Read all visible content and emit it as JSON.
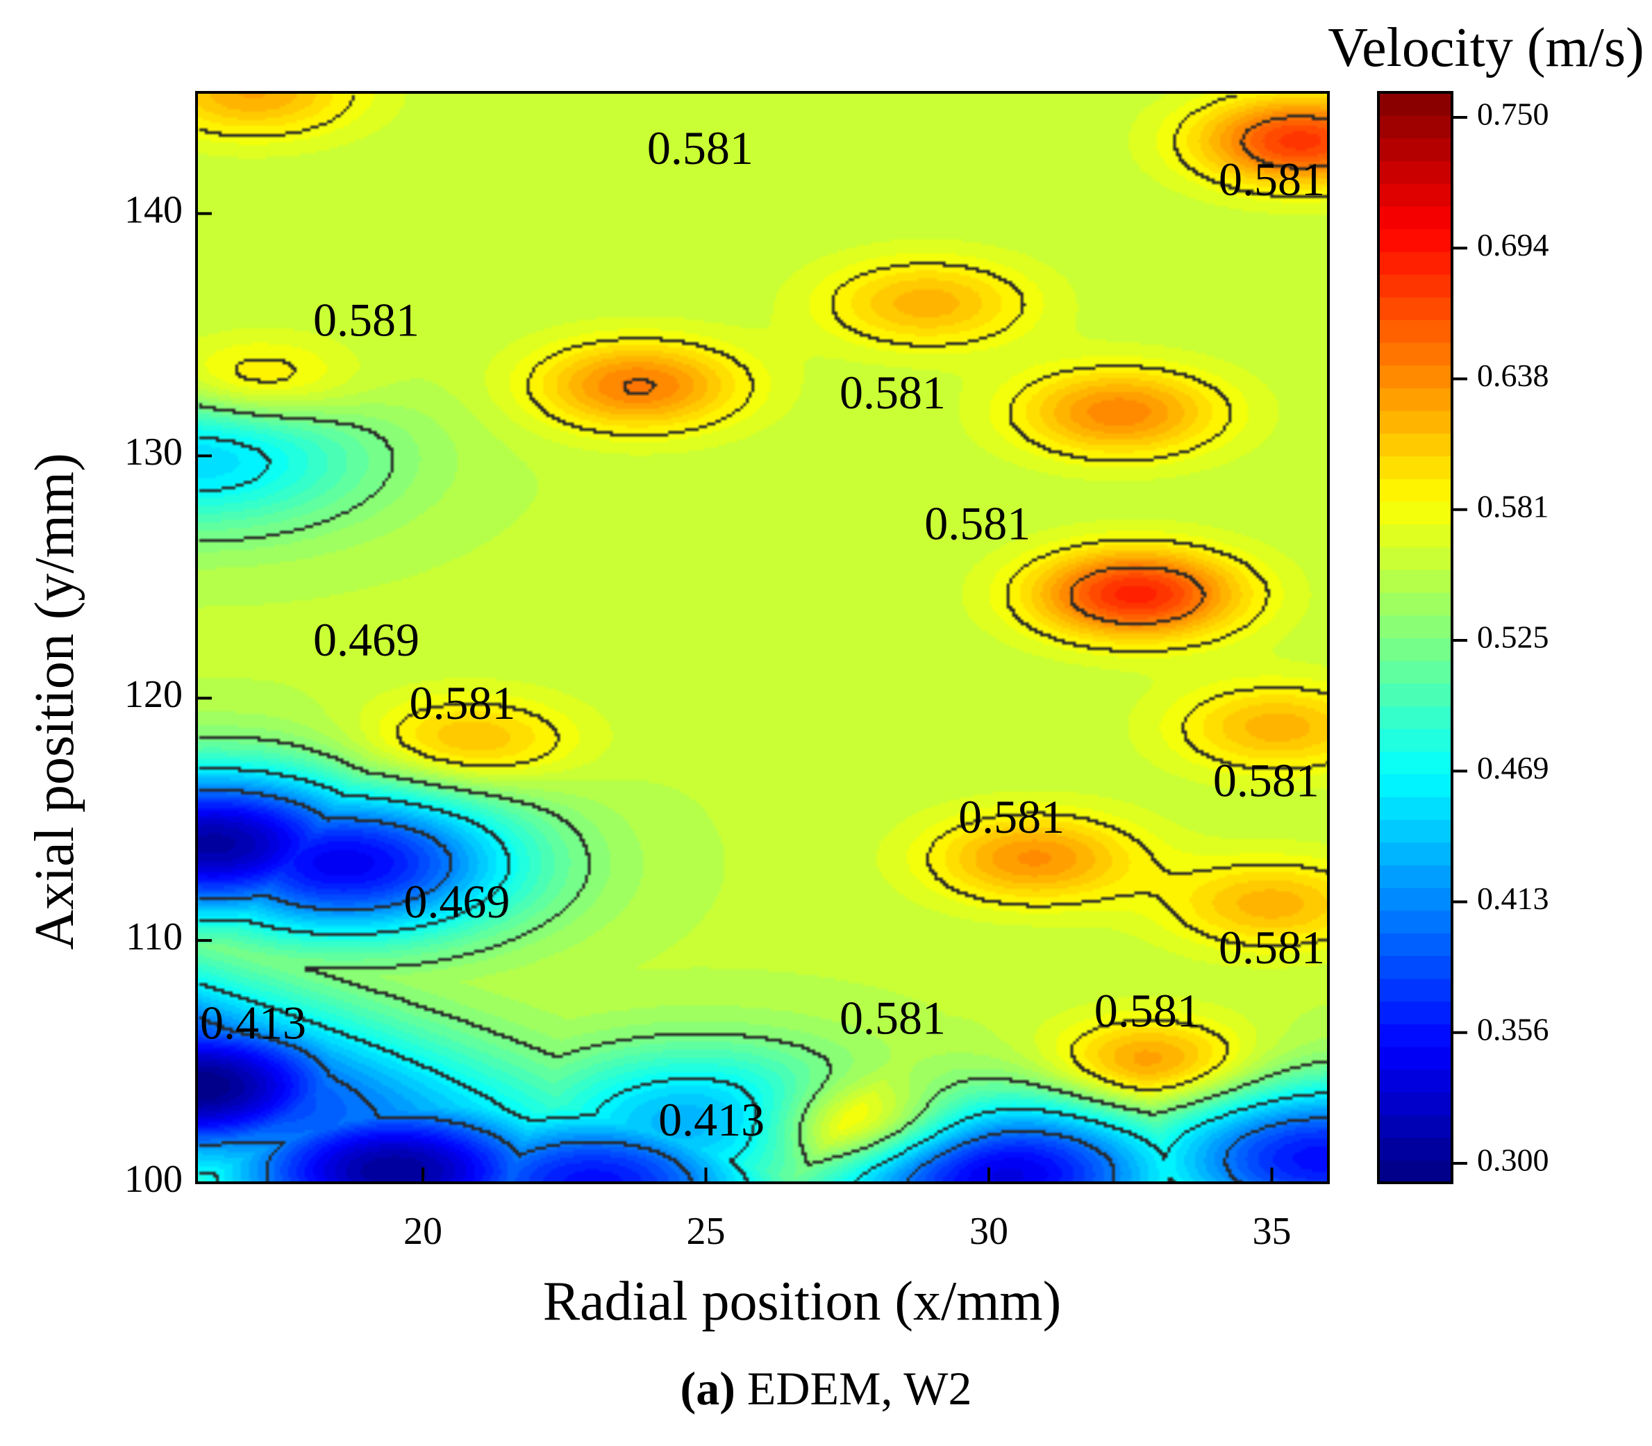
{
  "chart_data": {
    "type": "heatmap",
    "subtype": "filled-contour",
    "xlabel": "Radial position (x/mm)",
    "ylabel": "Axial position (y/mm)",
    "xlim": [
      16,
      36
    ],
    "ylim": [
      100,
      145
    ],
    "x_ticks": [
      20,
      25,
      30,
      35
    ],
    "y_ticks": [
      100,
      110,
      120,
      130,
      140
    ],
    "grid": false,
    "colorbar": {
      "title": "Velocity (m/s)",
      "ticks": [
        "0.300",
        "0.356",
        "0.413",
        "0.469",
        "0.525",
        "0.581",
        "0.638",
        "0.694",
        "0.750"
      ],
      "min": 0.3,
      "max": 0.75,
      "colormap": "jet",
      "placement": "right"
    },
    "contour_labels": [
      {
        "text": "0.581",
        "x": 24.9,
        "y": 142.5
      },
      {
        "text": "0.581",
        "x": 35.0,
        "y": 141.2
      },
      {
        "text": "0.581",
        "x": 19.0,
        "y": 135.4
      },
      {
        "text": "0.581",
        "x": 28.3,
        "y": 132.4
      },
      {
        "text": "0.581",
        "x": 29.8,
        "y": 127.0
      },
      {
        "text": "0.469",
        "x": 19.0,
        "y": 122.2
      },
      {
        "text": "0.581",
        "x": 20.7,
        "y": 119.6
      },
      {
        "text": "0.581",
        "x": 30.4,
        "y": 114.9
      },
      {
        "text": "0.581",
        "x": 34.9,
        "y": 116.4
      },
      {
        "text": "0.469",
        "x": 20.6,
        "y": 111.4
      },
      {
        "text": "0.581",
        "x": 35.0,
        "y": 109.5
      },
      {
        "text": "0.413",
        "x": 17.0,
        "y": 106.4
      },
      {
        "text": "0.581",
        "x": 28.3,
        "y": 106.6
      },
      {
        "text": "0.581",
        "x": 32.8,
        "y": 106.9
      },
      {
        "text": "0.413",
        "x": 25.1,
        "y": 102.4
      }
    ],
    "velocity_features": [
      {
        "kind": "peak",
        "x": 32.6,
        "y": 124.3,
        "value": 0.68
      },
      {
        "kind": "peak",
        "x": 35.5,
        "y": 143.0,
        "value": 0.67
      },
      {
        "kind": "peak",
        "x": 23.8,
        "y": 132.9,
        "value": 0.64
      },
      {
        "kind": "peak",
        "x": 32.3,
        "y": 131.8,
        "value": 0.635
      },
      {
        "kind": "peak",
        "x": 27.8,
        "y": 102.3,
        "value": 0.645
      },
      {
        "kind": "peak",
        "x": 32.9,
        "y": 104.9,
        "value": 0.635
      },
      {
        "kind": "peak",
        "x": 30.8,
        "y": 113.4,
        "value": 0.63
      },
      {
        "kind": "peak",
        "x": 17.0,
        "y": 145.0,
        "value": 0.62
      },
      {
        "kind": "peak",
        "x": 20.8,
        "y": 118.2,
        "value": 0.615
      },
      {
        "kind": "peak",
        "x": 28.9,
        "y": 136.3,
        "value": 0.615
      },
      {
        "kind": "peak",
        "x": 35.0,
        "y": 111.5,
        "value": 0.615
      },
      {
        "kind": "peak",
        "x": 35.1,
        "y": 118.8,
        "value": 0.615
      },
      {
        "kind": "peak",
        "x": 17.0,
        "y": 133.0,
        "value": 0.615
      },
      {
        "kind": "valley",
        "x": 16.0,
        "y": 104.0,
        "value": 0.3
      },
      {
        "kind": "valley",
        "x": 16.3,
        "y": 114.0,
        "value": 0.315
      },
      {
        "kind": "valley",
        "x": 19.5,
        "y": 100.5,
        "value": 0.31
      },
      {
        "kind": "valley",
        "x": 23.0,
        "y": 100.0,
        "value": 0.36
      },
      {
        "kind": "valley",
        "x": 18.6,
        "y": 113.2,
        "value": 0.35
      },
      {
        "kind": "valley",
        "x": 30.2,
        "y": 100.4,
        "value": 0.34
      },
      {
        "kind": "valley",
        "x": 35.9,
        "y": 101.0,
        "value": 0.36
      },
      {
        "kind": "valley",
        "x": 24.9,
        "y": 102.5,
        "value": 0.43
      },
      {
        "kind": "valley",
        "x": 16.0,
        "y": 130.0,
        "value": 0.45
      }
    ]
  },
  "caption": {
    "label": "(a)",
    "text": " EDEM, W2"
  }
}
